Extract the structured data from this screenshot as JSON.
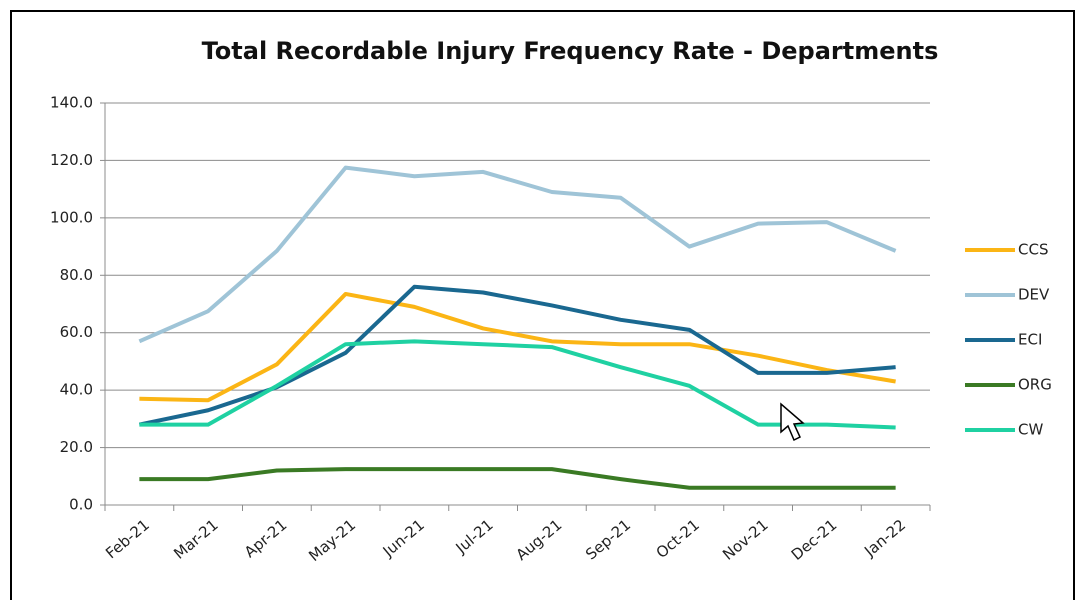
{
  "chart_data": {
    "type": "line",
    "title": "Total Recordable Injury Frequency Rate - Departments",
    "categories": [
      "Feb-21",
      "Mar-21",
      "Apr-21",
      "May-21",
      "Jun-21",
      "Jul-21",
      "Aug-21",
      "Sep-21",
      "Oct-21",
      "Nov-21",
      "Dec-21",
      "Jan-22"
    ],
    "series": [
      {
        "name": "CCS",
        "color": "#fbb515",
        "values": [
          37,
          36.5,
          49,
          73.5,
          69,
          61.5,
          57,
          56,
          56,
          52,
          47,
          43
        ]
      },
      {
        "name": "DEV",
        "color": "#9fc4d7",
        "values": [
          57,
          67.5,
          88.5,
          117.5,
          114.5,
          116,
          109,
          107,
          90,
          98,
          98.5,
          88.5
        ]
      },
      {
        "name": "ECI",
        "color": "#1a6890",
        "values": [
          28,
          33,
          41,
          53,
          76,
          74,
          69.5,
          64.5,
          61,
          46,
          46,
          48
        ]
      },
      {
        "name": "ORG",
        "color": "#3a7a24",
        "values": [
          9,
          9,
          12,
          12.5,
          12.5,
          12.5,
          12.5,
          9,
          6,
          6,
          6,
          6
        ]
      },
      {
        "name": "CW",
        "color": "#1fd1a2",
        "values": [
          28,
          28,
          41.5,
          56,
          57,
          56,
          55,
          48,
          41.5,
          28,
          28,
          27
        ]
      }
    ],
    "ylim": [
      0,
      140
    ],
    "yticks": [
      {
        "value": 0,
        "label": "0.0"
      },
      {
        "value": 20,
        "label": "20.0"
      },
      {
        "value": 40,
        "label": "40.0"
      },
      {
        "value": 60,
        "label": "60.0"
      },
      {
        "value": 80,
        "label": "80.0"
      },
      {
        "value": 100,
        "label": "100.0"
      },
      {
        "value": 120,
        "label": "120.0"
      },
      {
        "value": 140,
        "label": "140.0"
      }
    ],
    "grid": true,
    "legend": "right"
  }
}
